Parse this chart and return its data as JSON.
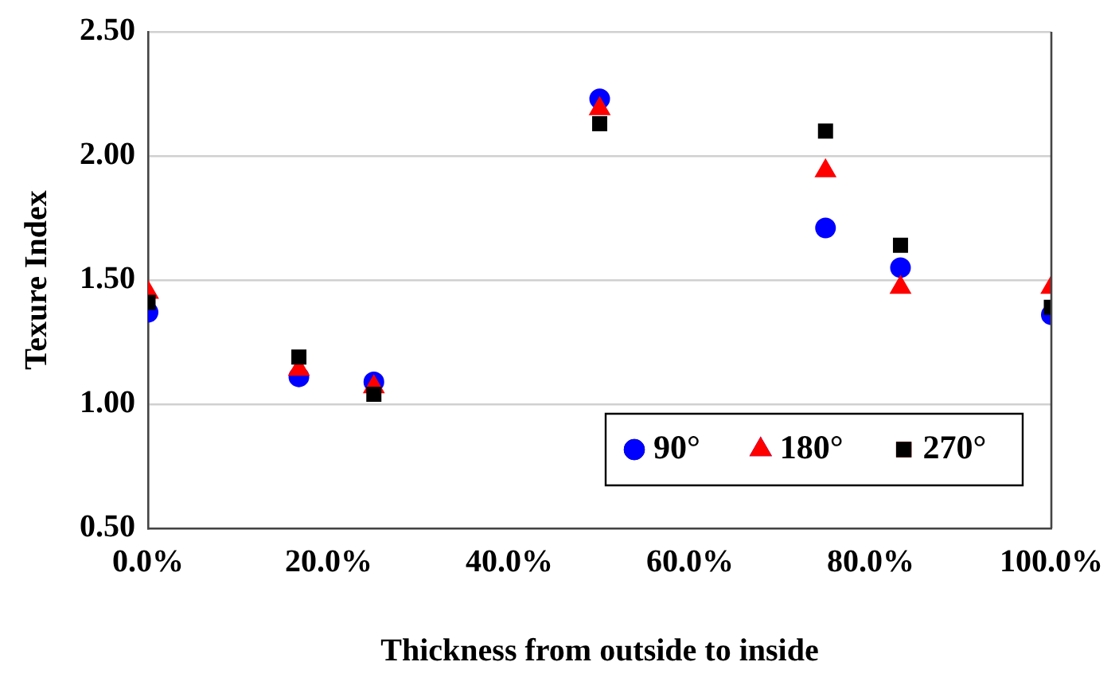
{
  "chart_data": {
    "type": "scatter",
    "xlabel": "Thickness from outside to inside",
    "ylabel": "Texure Index",
    "x": [
      0,
      16.7,
      25,
      50,
      75,
      83.3,
      100
    ],
    "series": [
      {
        "name": "90°",
        "color": "#0000ff",
        "marker": "circle",
        "values": [
          1.37,
          1.11,
          1.09,
          2.23,
          1.71,
          1.55,
          1.36
        ]
      },
      {
        "name": "180°",
        "color": "#ff0000",
        "marker": "triangle",
        "values": [
          1.45,
          1.14,
          1.07,
          2.19,
          1.94,
          1.47,
          1.47
        ]
      },
      {
        "name": "270°",
        "color": "#000000",
        "marker": "square",
        "values": [
          1.41,
          1.19,
          1.04,
          2.13,
          2.1,
          1.64,
          1.39
        ]
      }
    ],
    "xlim": [
      0,
      100
    ],
    "xticks": [
      {
        "value": 0,
        "label": "0.0%"
      },
      {
        "value": 20,
        "label": "20.0%"
      },
      {
        "value": 40,
        "label": "40.0%"
      },
      {
        "value": 60,
        "label": "60.0%"
      },
      {
        "value": 80,
        "label": "80.0%"
      },
      {
        "value": 100,
        "label": "100.0%"
      }
    ],
    "ylim": [
      0.5,
      2.5
    ],
    "yticks": [
      {
        "value": 0.5,
        "label": "0.50"
      },
      {
        "value": 1,
        "label": "1.00"
      },
      {
        "value": 1.5,
        "label": "1.50"
      },
      {
        "value": 2,
        "label": "2.00"
      },
      {
        "value": 2.5,
        "label": "2.50"
      }
    ],
    "grid": "y",
    "legend": "bottom right"
  }
}
